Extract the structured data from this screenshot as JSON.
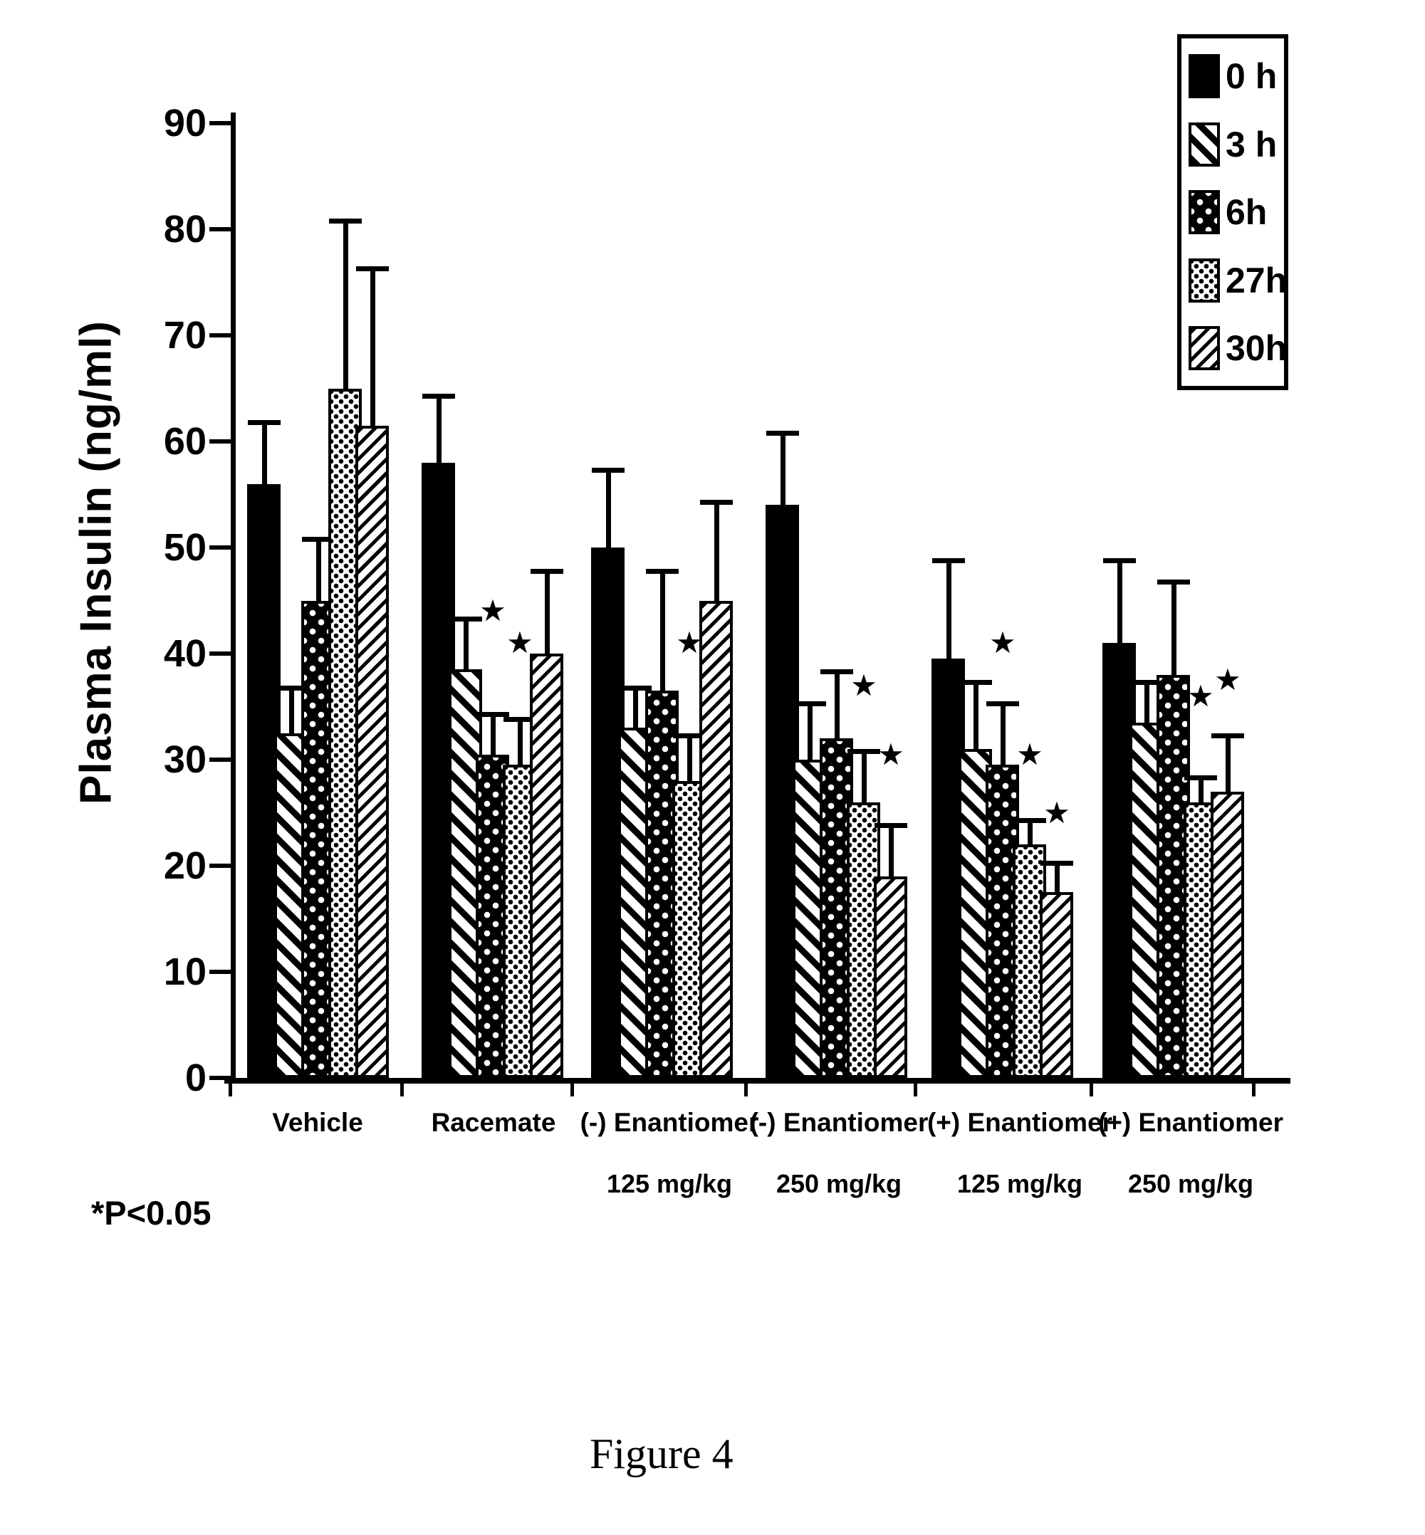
{
  "figure": {
    "caption": "Figure 4",
    "footnote": "*P<0.05"
  },
  "legend": {
    "items": [
      {
        "label": "0 h",
        "pattern": "solid-black"
      },
      {
        "label": "3 h",
        "pattern": "wide-diagonal-hatch"
      },
      {
        "label": "6h",
        "pattern": "white-dots-on-black"
      },
      {
        "label": "27h",
        "pattern": "black-dots-on-white"
      },
      {
        "label": "30h",
        "pattern": "fine-diagonal-hatch"
      }
    ]
  },
  "chart_data": {
    "type": "bar",
    "title": "",
    "ylabel": "Plasma Insulin (ng/ml)",
    "xlabel": "",
    "ylim": [
      0,
      90
    ],
    "yticks": [
      0,
      10,
      20,
      30,
      40,
      50,
      60,
      70,
      80,
      90
    ],
    "grid": false,
    "legend_position": "top-right",
    "error_bars": "upper-only",
    "categories": [
      {
        "line1": "Vehicle",
        "line2": ""
      },
      {
        "line1": "Racemate",
        "line2": ""
      },
      {
        "line1": "(-) Enantiomer",
        "line2": "125 mg/kg"
      },
      {
        "line1": "(-) Enantiomer",
        "line2": "250 mg/kg"
      },
      {
        "line1": "(+) Enantiomer",
        "line2": "125 mg/kg"
      },
      {
        "line1": "(+) Enantiomer",
        "line2": "250 mg/kg"
      }
    ],
    "series": [
      {
        "name": "0 h",
        "values": [
          56,
          58,
          50,
          54,
          39.5,
          41
        ],
        "error_tops": [
          62,
          64.5,
          57.5,
          61,
          49,
          49
        ],
        "sig_star_y": [
          null,
          null,
          null,
          null,
          null,
          null
        ]
      },
      {
        "name": "3 h",
        "values": [
          32.5,
          38.5,
          33,
          30,
          31,
          33.5
        ],
        "error_tops": [
          37,
          43.5,
          37,
          35.5,
          37.5,
          37.5
        ],
        "sig_star_y": [
          null,
          null,
          null,
          null,
          null,
          null
        ]
      },
      {
        "name": "6h",
        "values": [
          45,
          30.5,
          36.5,
          32,
          29.5,
          38
        ],
        "error_tops": [
          51,
          34.5,
          48,
          38.5,
          35.5,
          47
        ],
        "sig_star_y": [
          null,
          44,
          null,
          null,
          41,
          null
        ]
      },
      {
        "name": "27h",
        "values": [
          65,
          29.5,
          28,
          26,
          22,
          26
        ],
        "error_tops": [
          81,
          34,
          32.5,
          31,
          24.5,
          28.5
        ],
        "sig_star_y": [
          null,
          41,
          41,
          37,
          30.5,
          36
        ]
      },
      {
        "name": "30h",
        "values": [
          61.5,
          40,
          45,
          19,
          17.5,
          27
        ],
        "error_tops": [
          76.5,
          48,
          54.5,
          24,
          20.5,
          32.5
        ],
        "sig_star_y": [
          null,
          null,
          null,
          30.5,
          25,
          37.5
        ]
      }
    ],
    "significance_marker": "★",
    "significance_note": "*P<0.05"
  }
}
